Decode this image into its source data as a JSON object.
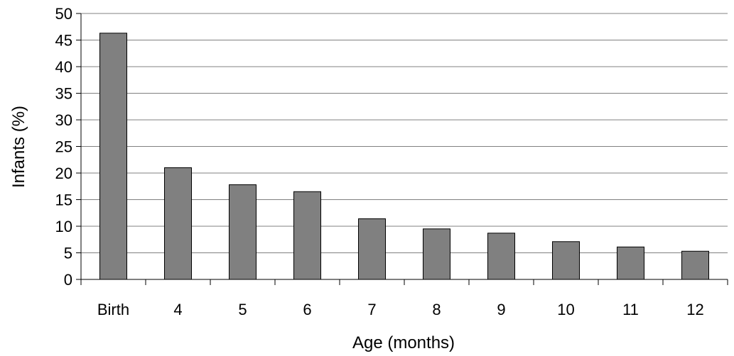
{
  "chart_data": {
    "type": "bar",
    "categories": [
      "Birth",
      "4",
      "5",
      "6",
      "7",
      "8",
      "9",
      "10",
      "11",
      "12"
    ],
    "values": [
      46.3,
      21.0,
      17.8,
      16.5,
      11.4,
      9.5,
      8.7,
      7.1,
      6.1,
      5.3
    ],
    "title": "",
    "xlabel": "Age (months)",
    "ylabel": "Infants (%)",
    "ylim": [
      0,
      50
    ],
    "yticks": [
      0,
      5,
      10,
      15,
      20,
      25,
      30,
      35,
      40,
      45,
      50
    ],
    "grid": true,
    "legend": "none",
    "colors": {
      "bar_fill": "#808080",
      "bar_stroke": "#000000",
      "grid": "#808080",
      "axis": "#000000"
    }
  }
}
